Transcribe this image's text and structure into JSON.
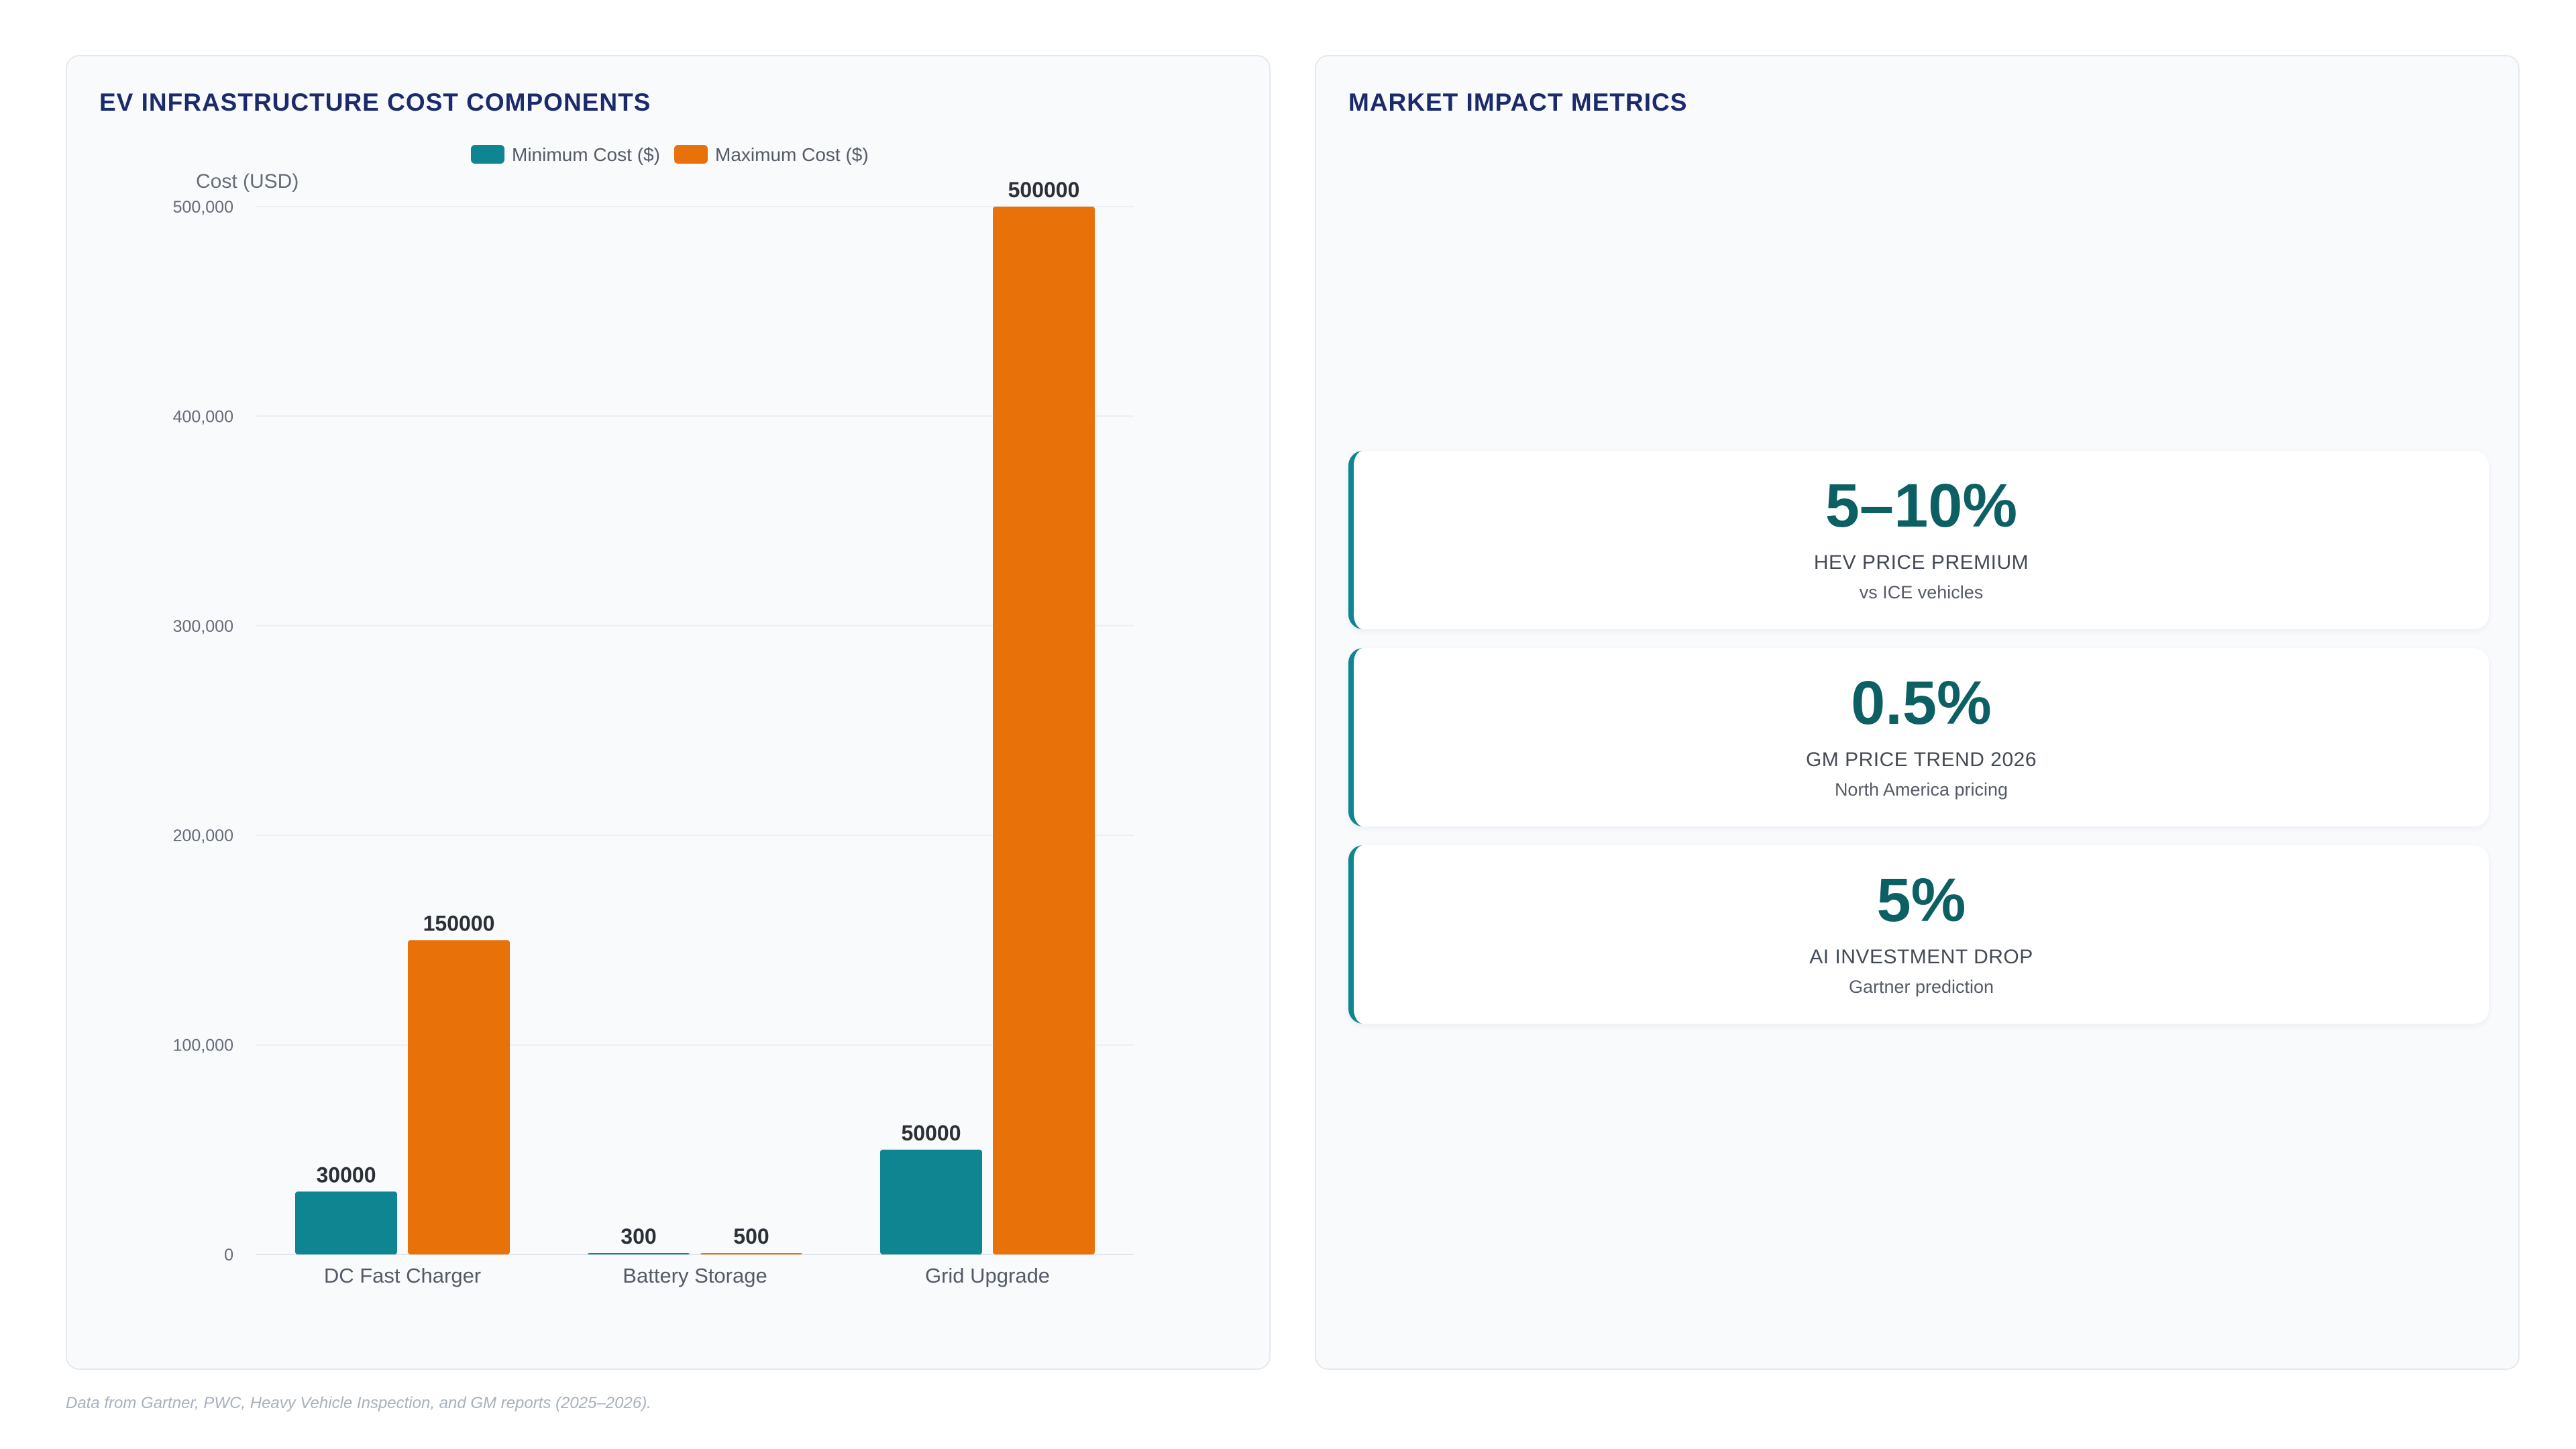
{
  "left_panel": {
    "title": "EV INFRASTRUCTURE COST COMPONENTS"
  },
  "right_panel": {
    "title": "MARKET IMPACT METRICS",
    "metrics": [
      {
        "value": "5–10%",
        "label": "HEV PRICE PREMIUM",
        "sub": "vs ICE vehicles"
      },
      {
        "value": "0.5%",
        "label": "GM PRICE TREND 2026",
        "sub": "North America pricing"
      },
      {
        "value": "5%",
        "label": "AI INVESTMENT DROP",
        "sub": "Gartner prediction"
      }
    ]
  },
  "footnote": "Data from Gartner, PWC, Heavy Vehicle Inspection, and GM reports (2025–2026).",
  "chart_data": {
    "type": "bar",
    "title": "EV INFRASTRUCTURE COST COMPONENTS",
    "categories": [
      "DC Fast Charger",
      "Battery Storage",
      "Grid Upgrade"
    ],
    "series": [
      {
        "name": "Minimum Cost ($)",
        "color": "#0f8591",
        "values": [
          30000,
          300,
          50000
        ]
      },
      {
        "name": "Maximum Cost ($)",
        "color": "#e8710a",
        "values": [
          150000,
          500,
          500000
        ]
      }
    ],
    "xlabel": "",
    "ylabel": "Cost (USD)",
    "ylim": [
      0,
      500000
    ],
    "yticks": [
      0,
      100000,
      200000,
      300000,
      400000,
      500000
    ],
    "ytick_labels": [
      "0",
      "100,000",
      "200,000",
      "300,000",
      "400,000",
      "500,000"
    ],
    "grid": true,
    "legend": "top-center",
    "data_labels": true
  }
}
